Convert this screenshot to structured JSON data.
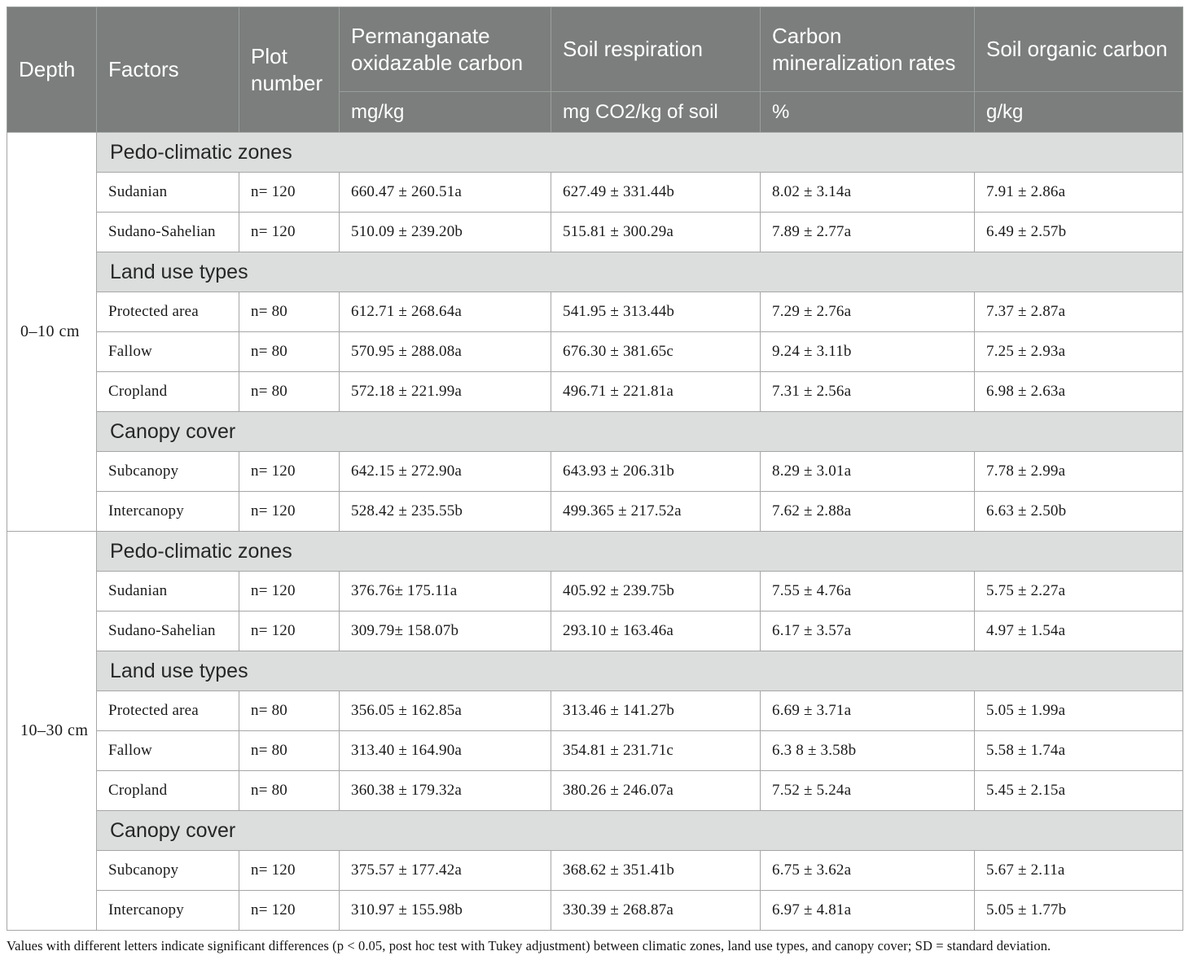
{
  "table": {
    "columns": [
      {
        "label": "Depth",
        "unit": ""
      },
      {
        "label": "Factors",
        "unit": ""
      },
      {
        "label": "Plot number",
        "unit": ""
      },
      {
        "label": "Permanganate oxidazable carbon",
        "unit": "mg/kg"
      },
      {
        "label": "Soil respiration",
        "unit": "mg CO2/kg of soil"
      },
      {
        "label": "Carbon mineralization rates",
        "unit": "%"
      },
      {
        "label": "Soil organic carbon",
        "unit": "g/kg"
      }
    ],
    "depth_groups": [
      {
        "depth": "0–10 cm",
        "sections": [
          {
            "title": "Pedo-climatic zones",
            "rows": [
              {
                "factor": "Sudanian",
                "plot": "n= 120",
                "poc": "660.47 ± 260.51a",
                "resp": "627.49 ± 331.44b",
                "cmr": "8.02 ± 3.14a",
                "soc": "7.91 ± 2.86a"
              },
              {
                "factor": "Sudano-Sahelian",
                "plot": "n= 120",
                "poc": "510.09 ± 239.20b",
                "resp": "515.81 ± 300.29a",
                "cmr": "7.89 ± 2.77a",
                "soc": "6.49 ± 2.57b"
              }
            ]
          },
          {
            "title": "Land use types",
            "rows": [
              {
                "factor": "Protected area",
                "plot": "n= 80",
                "poc": "612.71 ± 268.64a",
                "resp": "541.95 ± 313.44b",
                "cmr": "7.29 ± 2.76a",
                "soc": "7.37 ± 2.87a"
              },
              {
                "factor": "Fallow",
                "plot": "n= 80",
                "poc": "570.95 ± 288.08a",
                "resp": "676.30 ± 381.65c",
                "cmr": "9.24 ± 3.11b",
                "soc": "7.25 ± 2.93a"
              },
              {
                "factor": "Cropland",
                "plot": "n= 80",
                "poc": "572.18 ± 221.99a",
                "resp": "496.71 ± 221.81a",
                "cmr": "7.31 ± 2.56a",
                "soc": "6.98 ± 2.63a"
              }
            ]
          },
          {
            "title": "Canopy cover",
            "rows": [
              {
                "factor": "Subcanopy",
                "plot": "n= 120",
                "poc": "642.15 ± 272.90a",
                "resp": "643.93 ± 206.31b",
                "cmr": "8.29 ± 3.01a",
                "soc": "7.78 ± 2.99a"
              },
              {
                "factor": "Intercanopy",
                "plot": "n= 120",
                "poc": "528.42 ± 235.55b",
                "resp": "499.365 ± 217.52a",
                "cmr": "7.62 ± 2.88a",
                "soc": "6.63 ± 2.50b"
              }
            ]
          }
        ]
      },
      {
        "depth": "10–30 cm",
        "sections": [
          {
            "title": "Pedo-climatic zones",
            "rows": [
              {
                "factor": "Sudanian",
                "plot": "n= 120",
                "poc": "376.76± 175.11a",
                "resp": "405.92 ± 239.75b",
                "cmr": "7.55 ± 4.76a",
                "soc": "5.75 ± 2.27a"
              },
              {
                "factor": "Sudano-Sahelian",
                "plot": "n= 120",
                "poc": "309.79± 158.07b",
                "resp": "293.10 ± 163.46a",
                "cmr": "6.17 ± 3.57a",
                "soc": "4.97 ± 1.54a"
              }
            ]
          },
          {
            "title": "Land use types",
            "rows": [
              {
                "factor": "Protected area",
                "plot": "n= 80",
                "poc": "356.05 ± 162.85a",
                "resp": "313.46 ± 141.27b",
                "cmr": "6.69 ± 3.71a",
                "soc": "5.05 ± 1.99a"
              },
              {
                "factor": "Fallow",
                "plot": "n= 80",
                "poc": "313.40 ± 164.90a",
                "resp": "354.81 ± 231.71c",
                "cmr": "6.3 8 ± 3.58b",
                "soc": "5.58 ± 1.74a"
              },
              {
                "factor": "Cropland",
                "plot": "n= 80",
                "poc": "360.38 ± 179.32a",
                "resp": "380.26 ± 246.07a",
                "cmr": "7.52 ± 5.24a",
                "soc": "5.45 ± 2.15a"
              }
            ]
          },
          {
            "title": "Canopy cover",
            "rows": [
              {
                "factor": "Subcanopy",
                "plot": "n= 120",
                "poc": "375.57 ± 177.42a",
                "resp": "368.62 ± 351.41b",
                "cmr": "6.75 ± 3.62a",
                "soc": "5.67 ± 2.11a"
              },
              {
                "factor": "Intercanopy",
                "plot": "n= 120",
                "poc": "310.97 ± 155.98b",
                "resp": "330.39 ± 268.87a",
                "cmr": "6.97 ± 4.81a",
                "soc": "5.05 ± 1.77b"
              }
            ]
          }
        ]
      }
    ],
    "footnote": "Values with different letters indicate significant differences (p < 0.05, post hoc test with Tukey adjustment) between climatic zones, land use types, and canopy cover; SD = standard deviation.",
    "colors": {
      "header_bg": "#7b7e7c",
      "header_text": "#ffffff",
      "section_bg": "#dcdedd",
      "border": "#a6a6a6"
    }
  }
}
